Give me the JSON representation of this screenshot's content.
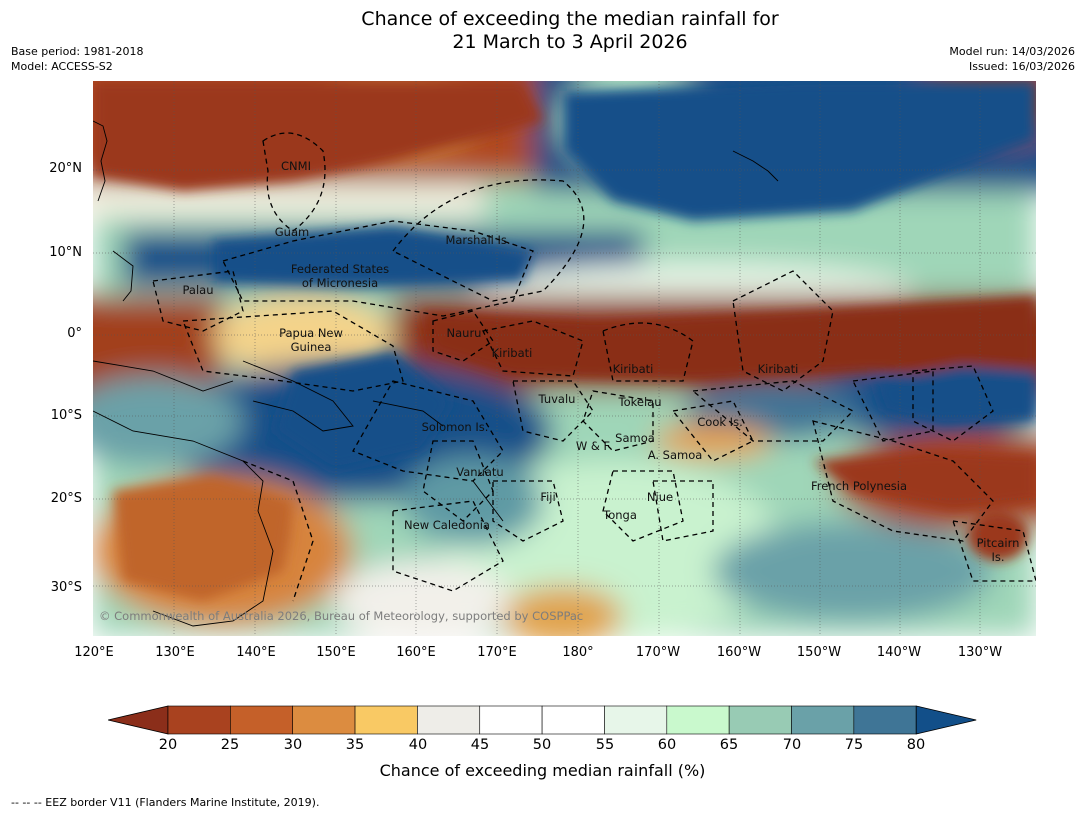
{
  "title": {
    "line1": "Chance of exceeding the median rainfall for",
    "line2": "21 March to 3 April 2026"
  },
  "meta": {
    "base_period": "Base period: 1981-2018",
    "model": "Model: ACCESS-S2",
    "model_run": "Model run: 14/03/2026",
    "issued": "Issued: 16/03/2026"
  },
  "axes": {
    "lat_labels": [
      "20°N",
      "10°N",
      "0°",
      "10°S",
      "20°S",
      "30°S"
    ],
    "lon_labels": [
      "120°E",
      "130°E",
      "140°E",
      "150°E",
      "160°E",
      "170°E",
      "180°",
      "170°W",
      "160°W",
      "150°W",
      "140°W",
      "130°W"
    ]
  },
  "places": {
    "cnmi": "CNMI",
    "guam": "Guam",
    "marshall": "Marshall Is.",
    "fsm_1": "Federated States",
    "fsm_2": "of Micronesia",
    "palau": "Palau",
    "png_1": "Papua New",
    "png_2": "Guinea",
    "nauru": "Nauru",
    "kiribati_w": "Kiribati",
    "kiribati_c": "Kiribati",
    "kiribati_e": "Kiribati",
    "tuvalu": "Tuvalu",
    "tokelau": "Tokelau",
    "solomon": "Solomon Is.",
    "wf": "W & F",
    "samoa": "Samoa",
    "asamoa": "A. Samoa",
    "cook": "Cook Is.",
    "vanuatu": "Vanuatu",
    "fiji": "Fiji",
    "niue": "Niue",
    "tonga": "Tonga",
    "newcal": "New Caledonia",
    "frenchpoly": "French Polynesia",
    "pitcairn_1": "Pitcairn",
    "pitcairn_2": "Is."
  },
  "copyright": "© Commonwealth of Australia 2026, Bureau of Meteorology, supported by COSPPac",
  "colorbar": {
    "ticks": [
      "20",
      "25",
      "30",
      "35",
      "40",
      "45",
      "50",
      "55",
      "60",
      "65",
      "70",
      "75",
      "80"
    ],
    "label": "Chance of exceeding median rainfall (%)",
    "colors": [
      "#8b2e1a",
      "#a9421f",
      "#c56029",
      "#dc8c40",
      "#f9c964",
      "#eeede8",
      "#ffffff",
      "#ffffff",
      "#e7f6e9",
      "#c9f9cd",
      "#98cbb4",
      "#6aa1a8",
      "#3f7596",
      "#124f89"
    ]
  },
  "legend_note": "--  --  -- EEZ border V11 (Flanders Marine Institute, 2019)."
}
